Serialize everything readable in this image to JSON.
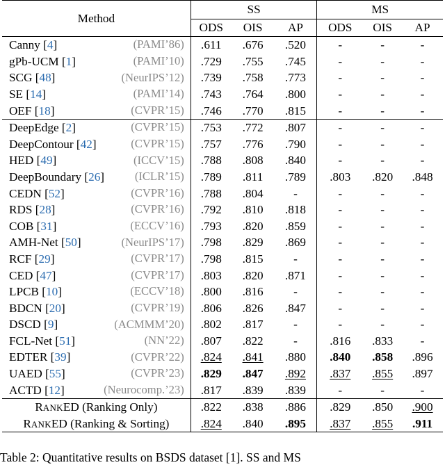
{
  "header": {
    "method": "Method",
    "ss": "SS",
    "ms": "MS",
    "cols": [
      "ODS",
      "OIS",
      "AP",
      "ODS",
      "OIS",
      "AP"
    ]
  },
  "rows": [
    {
      "name": "Canny",
      "cite": "4",
      "venue": "(PAMI’86)",
      "v": [
        ".611",
        ".676",
        ".520",
        "-",
        "-",
        "-"
      ],
      "group_start": true
    },
    {
      "name": "gPb-UCM",
      "cite": "1",
      "venue": "(PAMI’10)",
      "v": [
        ".729",
        ".755",
        ".745",
        "-",
        "-",
        "-"
      ]
    },
    {
      "name": "SCG",
      "cite": "48",
      "venue": "(NeurIPS’12)",
      "v": [
        ".739",
        ".758",
        ".773",
        "-",
        "-",
        "-"
      ]
    },
    {
      "name": "SE",
      "cite": "14",
      "venue": "(PAMI’14)",
      "v": [
        ".743",
        ".764",
        ".800",
        "-",
        "-",
        "-"
      ]
    },
    {
      "name": "OEF",
      "cite": "18",
      "venue": "(CVPR’15)",
      "v": [
        ".746",
        ".770",
        ".815",
        "-",
        "-",
        "-"
      ]
    },
    {
      "name": "DeepEdge",
      "cite": "2",
      "venue": "(CVPR’15)",
      "v": [
        ".753",
        ".772",
        ".807",
        "-",
        "-",
        "-"
      ],
      "group_start": true
    },
    {
      "name": "DeepContour",
      "cite": "42",
      "venue": "(CVPR’15)",
      "v": [
        ".757",
        ".776",
        ".790",
        "-",
        "-",
        "-"
      ]
    },
    {
      "name": "HED",
      "cite": "49",
      "venue": "(ICCV’15)",
      "v": [
        ".788",
        ".808",
        ".840",
        "-",
        "-",
        "-"
      ]
    },
    {
      "name": "DeepBoundary",
      "cite": "26",
      "venue": "(ICLR’15)",
      "v": [
        ".789",
        ".811",
        ".789",
        ".803",
        ".820",
        ".848"
      ]
    },
    {
      "name": "CEDN",
      "cite": "52",
      "venue": "(CVPR’16)",
      "v": [
        ".788",
        ".804",
        "-",
        "-",
        "-",
        "-"
      ]
    },
    {
      "name": "RDS",
      "cite": "28",
      "venue": "(CVPR’16)",
      "v": [
        ".792",
        ".810",
        ".818",
        "-",
        "-",
        "-"
      ]
    },
    {
      "name": "COB",
      "cite": "31",
      "venue": "(ECCV’16)",
      "v": [
        ".793",
        ".820",
        ".859",
        "-",
        "-",
        "-"
      ]
    },
    {
      "name": "AMH-Net",
      "cite": "50",
      "venue": "(NeurIPS’17)",
      "v": [
        ".798",
        ".829",
        ".869",
        "-",
        "-",
        "-"
      ]
    },
    {
      "name": "RCF",
      "cite": "29",
      "venue": "(CVPR’17)",
      "v": [
        ".798",
        ".815",
        "-",
        "-",
        "-",
        "-"
      ]
    },
    {
      "name": "CED",
      "cite": "47",
      "venue": "(CVPR’17)",
      "v": [
        ".803",
        ".820",
        ".871",
        "-",
        "-",
        "-"
      ]
    },
    {
      "name": "LPCB",
      "cite": "10",
      "venue": "(ECCV’18)",
      "v": [
        ".800",
        ".816",
        "-",
        "-",
        "-",
        "-"
      ]
    },
    {
      "name": "BDCN",
      "cite": "20",
      "venue": "(CVPR’19)",
      "v": [
        ".806",
        ".826",
        ".847",
        "-",
        "-",
        "-"
      ]
    },
    {
      "name": "DSCD",
      "cite": "9",
      "venue": "(ACMMM’20)",
      "v": [
        ".802",
        ".817",
        "-",
        "-",
        "-",
        "-"
      ]
    },
    {
      "name": "FCL-Net",
      "cite": "51",
      "venue": "(NN’22)",
      "v": [
        ".807",
        ".822",
        "-",
        ".816",
        ".833",
        "-"
      ]
    },
    {
      "name": "EDTER",
      "cite": "39",
      "venue": "(CVPR’22)",
      "v": [
        ".824",
        ".841",
        ".880",
        ".840",
        ".858",
        ".896"
      ],
      "styles": [
        "u",
        "u",
        "",
        "b",
        "b",
        ""
      ]
    },
    {
      "name": "UAED",
      "cite": "55",
      "venue": "(CVPR’23)",
      "v": [
        ".829",
        ".847",
        ".892",
        ".837",
        ".855",
        ".897"
      ],
      "styles": [
        "b",
        "b",
        "u",
        "u",
        "u",
        ""
      ]
    },
    {
      "name": "ACTD",
      "cite": "12",
      "venue": "(Neurocomp.’23)",
      "v": [
        ".817",
        ".839",
        ".839",
        "-",
        "-",
        "-"
      ]
    }
  ],
  "ranked": [
    {
      "name_big": "R",
      "name_small": "ANK",
      "name_big2": "ED",
      "suffix": " (Ranking Only)",
      "v": [
        ".822",
        ".838",
        ".886",
        ".829",
        ".850",
        ".900"
      ],
      "styles": [
        "",
        "",
        "",
        "",
        "",
        "u"
      ]
    },
    {
      "name_big": "R",
      "name_small": "ANK",
      "name_big2": "ED",
      "suffix": " (Ranking & Sorting)",
      "v": [
        ".824",
        ".840",
        ".895",
        ".837",
        ".855",
        ".911"
      ],
      "styles": [
        "u",
        "",
        "b",
        "u",
        "u",
        "b"
      ]
    }
  ],
  "caption": "Table 2: Quantitative results on BSDS dataset [1]. SS and MS"
}
